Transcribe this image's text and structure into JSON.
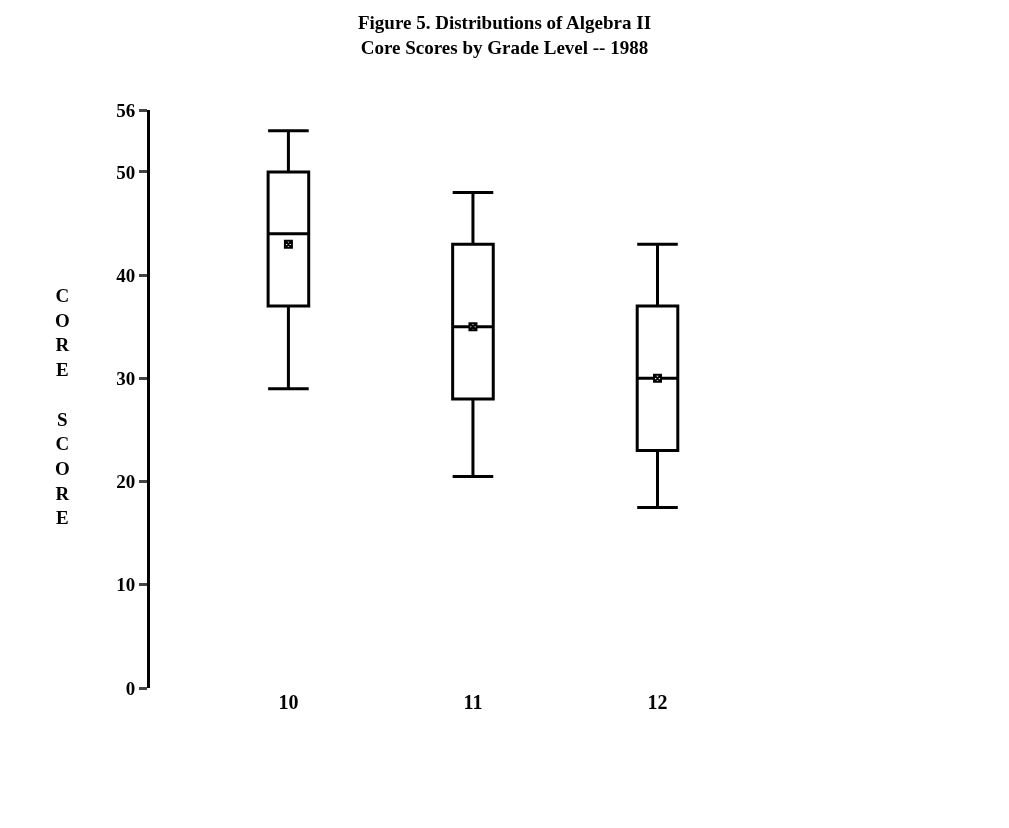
{
  "chart_data": {
    "type": "box",
    "title": "Figure 5. Distributions of Algebra II\nCore Scores by Grade Level -- 1988",
    "ylabel": "CORE SCORE",
    "categories": [
      "10",
      "11",
      "12"
    ],
    "boxes": [
      {
        "low": 29,
        "q1": 37,
        "median": 44,
        "q3": 50,
        "high": 54,
        "mean": 43
      },
      {
        "low": 20.5,
        "q1": 28,
        "median": 35,
        "q3": 43,
        "high": 48,
        "mean": 35
      },
      {
        "low": 17.5,
        "q1": 23,
        "median": 30,
        "q3": 37,
        "high": 43,
        "mean": 30
      }
    ],
    "color": "#000000",
    "marker": "square",
    "ylim": [
      0,
      56
    ],
    "yticks": [
      0,
      10,
      20,
      30,
      40,
      50,
      56
    ]
  }
}
